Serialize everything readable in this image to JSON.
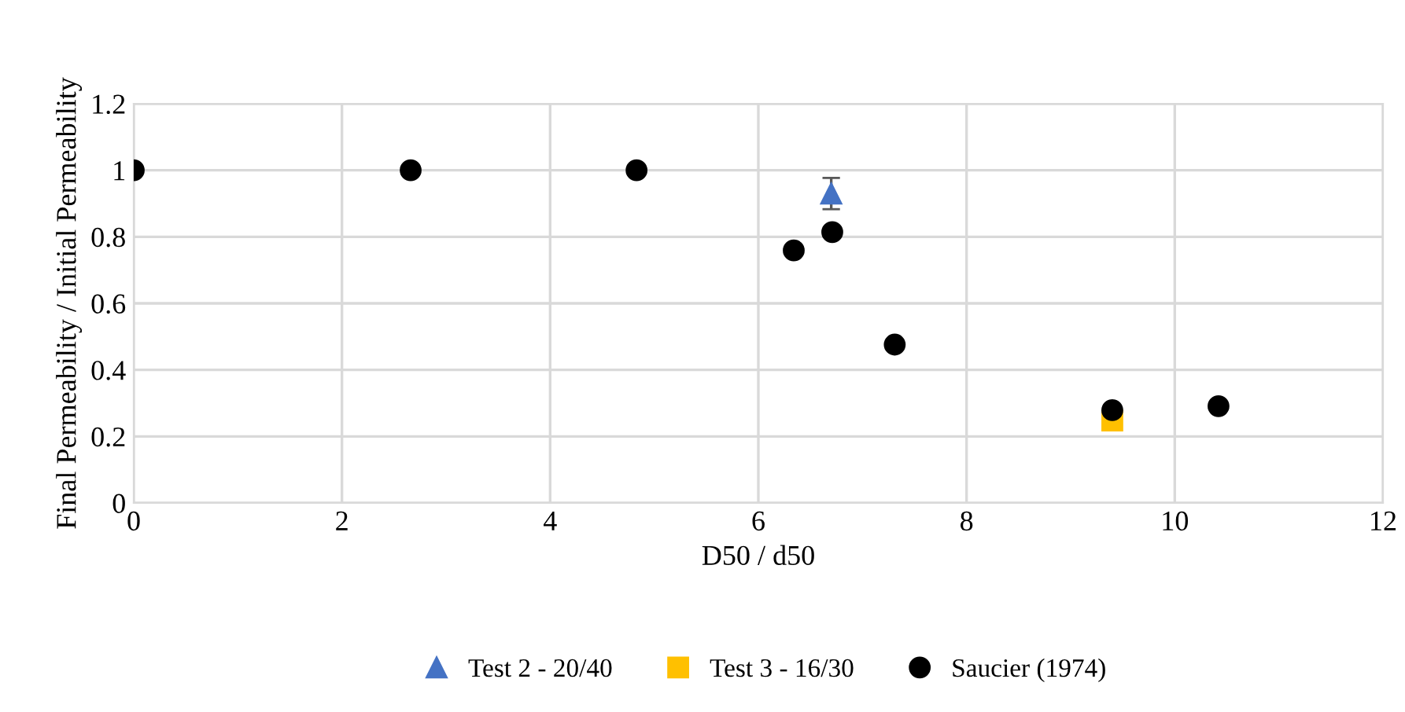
{
  "chart_data": {
    "type": "scatter",
    "xlabel": "D50 / d50",
    "ylabel": "Final Permeability / Initial Permeability",
    "xlim": [
      0,
      12
    ],
    "xticks": [
      0,
      2,
      4,
      6,
      8,
      10,
      12
    ],
    "ylim": [
      0,
      1.2
    ],
    "yticks": [
      0,
      0.2,
      0.4,
      0.6,
      0.8,
      1,
      1.2
    ],
    "grid": true,
    "legend": "bottom",
    "series": [
      {
        "name": "Test 2 - 20/40",
        "color": "#4472c4",
        "marker": "triangle",
        "x": [
          6.7
        ],
        "values": [
          0.93
        ],
        "errors": [
          0.047
        ]
      },
      {
        "name": "Test 3 - 16/30",
        "color": "#ffc000",
        "marker": "square",
        "x": [
          9.4
        ],
        "values": [
          0.248
        ]
      },
      {
        "name": "Saucier (1974)",
        "color": "#000000",
        "marker": "circle",
        "x": [
          0,
          2.66,
          4.83,
          6.34,
          6.71,
          7.31,
          9.4,
          10.42
        ],
        "values": [
          1,
          1,
          1,
          0.759,
          0.814,
          0.476,
          0.279,
          0.291
        ]
      }
    ]
  }
}
